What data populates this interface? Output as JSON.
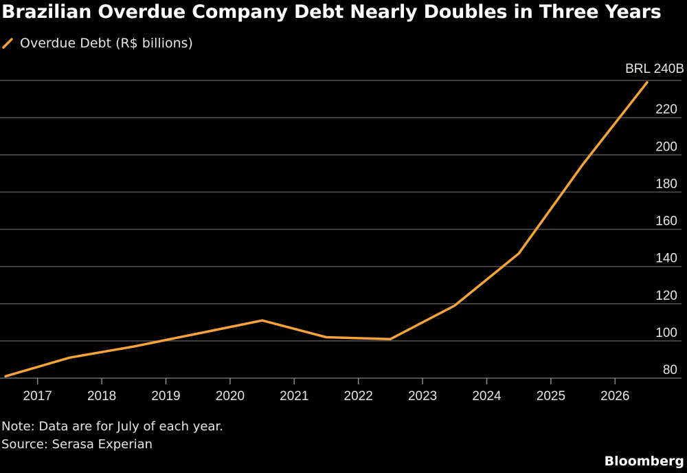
{
  "title": "Brazilian Overdue Company Debt Nearly Doubles in Three Years",
  "legend": {
    "label": "Overdue Debt (R$ billions)",
    "color": "#f5a33a"
  },
  "notes": {
    "note": "Note: Data are for July of each year.",
    "source": "Source: Serasa Experian"
  },
  "brand": "Bloomberg",
  "chart_data": {
    "type": "line",
    "x": [
      2016.5,
      2017.5,
      2018.5,
      2019.5,
      2020.5,
      2021.5,
      2022.5,
      2023.5,
      2024.5,
      2025.5,
      2026.5
    ],
    "series": [
      {
        "name": "Overdue Debt (R$ billions)",
        "values": [
          81,
          91,
          97,
          104,
          111,
          102,
          101,
          119,
          147,
          195,
          239
        ],
        "color": "#f5a33a"
      }
    ],
    "end_label": "BRL 240B",
    "xlim": [
      2016.5,
      2026.5
    ],
    "ylim": [
      80,
      240
    ],
    "x_ticks": [
      2017,
      2018,
      2019,
      2020,
      2021,
      2022,
      2023,
      2024,
      2025,
      2026
    ],
    "y_ticks": [
      80,
      100,
      120,
      140,
      160,
      180,
      200,
      220
    ],
    "y_axis_position": "right",
    "grid": true
  }
}
